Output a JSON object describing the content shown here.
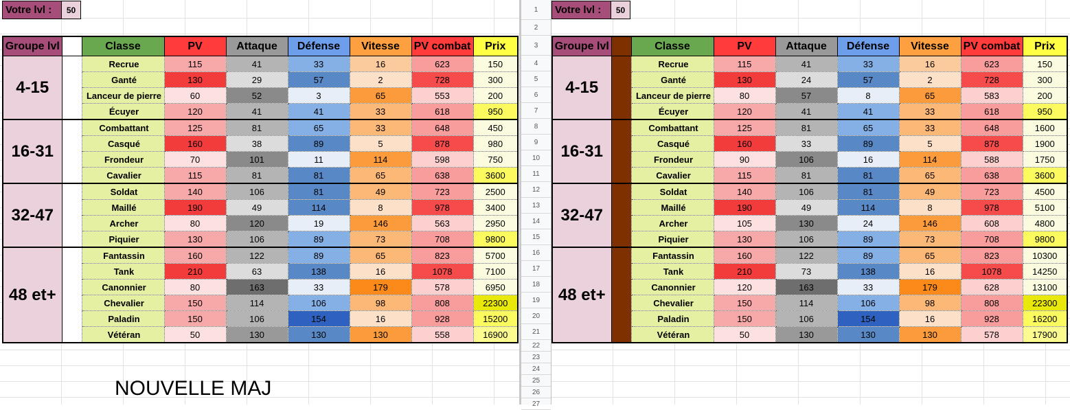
{
  "level": {
    "label": "Votre lvl :",
    "value": "50"
  },
  "note": "NOUVELLE MAJ",
  "row_numbers": [
    "1",
    "2",
    "3",
    "4",
    "5",
    "6",
    "7",
    "8",
    "9",
    "10",
    "11",
    "12",
    "13",
    "14",
    "15",
    "16",
    "17",
    "18",
    "19",
    "20",
    "21",
    "22",
    "23",
    "24",
    "25",
    "26",
    "27"
  ],
  "headers": {
    "group": "Groupe lvl",
    "class": "Classe",
    "pv": "PV",
    "attack": "Attaque",
    "defense": "Défense",
    "speed": "Vitesse",
    "combat": "PV combat",
    "price": "Prix"
  },
  "colors": {
    "header_group": "#a64d79",
    "header_class": "#6aa84f",
    "header_pv": "#ff3b3b",
    "header_attack": "#999999",
    "header_defense": "#6d9eeb",
    "header_speed": "#ffa040",
    "header_combat": "#ff3b3b",
    "header_price": "#ffff44",
    "right_spacer": "#7f3000"
  },
  "left": {
    "groups": [
      {
        "label": "4-15",
        "rows": [
          {
            "name": "Recrue",
            "pv": "115",
            "att": "41",
            "def": "33",
            "spd": "16",
            "comb": "623",
            "price": "150",
            "c": [
              "#f7a8a8",
              "#b4b4b4",
              "#84b0e6",
              "#fbcb9e",
              "#f89c9c",
              "#fbfbe0"
            ]
          },
          {
            "name": "Ganté",
            "pv": "130",
            "att": "29",
            "def": "57",
            "spd": "2",
            "comb": "728",
            "price": "300",
            "c": [
              "#f23b3b",
              "#dcdcdc",
              "#5888c6",
              "#fde0c8",
              "#f54b4b",
              "#fbfbe0"
            ]
          },
          {
            "name": "Lanceur de pierre",
            "pv": "60",
            "att": "52",
            "def": "3",
            "spd": "65",
            "comb": "553",
            "price": "200",
            "c": [
              "#fde0e0",
              "#8a8a8a",
              "#e8eef8",
              "#fb9b3c",
              "#fdd0d0",
              "#fbfbe0"
            ]
          },
          {
            "name": "Écuyer",
            "pv": "120",
            "att": "41",
            "def": "41",
            "spd": "33",
            "comb": "618",
            "price": "950",
            "c": [
              "#f7a8a8",
              "#b4b4b4",
              "#84b0e6",
              "#fbb877",
              "#f89c9c",
              "#fbfb60"
            ]
          }
        ]
      },
      {
        "label": "16-31",
        "rows": [
          {
            "name": "Combattant",
            "pv": "125",
            "att": "81",
            "def": "65",
            "spd": "33",
            "comb": "648",
            "price": "450",
            "c": [
              "#f7a8a8",
              "#b4b4b4",
              "#84b0e6",
              "#fbb877",
              "#f89c9c",
              "#fbfbe0"
            ]
          },
          {
            "name": "Casqué",
            "pv": "160",
            "att": "38",
            "def": "89",
            "spd": "5",
            "comb": "878",
            "price": "980",
            "c": [
              "#f23b3b",
              "#dcdcdc",
              "#5888c6",
              "#fde0c8",
              "#f54b4b",
              "#fbfbe0"
            ]
          },
          {
            "name": "Frondeur",
            "pv": "70",
            "att": "101",
            "def": "11",
            "spd": "114",
            "comb": "598",
            "price": "750",
            "c": [
              "#fde0e0",
              "#8a8a8a",
              "#e8eef8",
              "#fb9b3c",
              "#fdd0d0",
              "#fbfbe0"
            ]
          },
          {
            "name": "Cavalier",
            "pv": "115",
            "att": "81",
            "def": "81",
            "spd": "65",
            "comb": "638",
            "price": "3600",
            "c": [
              "#f7a8a8",
              "#b4b4b4",
              "#5888c6",
              "#fbb877",
              "#f89c9c",
              "#fbfb60"
            ]
          }
        ]
      },
      {
        "label": "32-47",
        "rows": [
          {
            "name": "Soldat",
            "pv": "140",
            "att": "106",
            "def": "81",
            "spd": "49",
            "comb": "723",
            "price": "2500",
            "c": [
              "#f7a8a8",
              "#b4b4b4",
              "#5888c6",
              "#fbb877",
              "#f89c9c",
              "#fbfbe0"
            ]
          },
          {
            "name": "Maillé",
            "pv": "190",
            "att": "49",
            "def": "114",
            "spd": "8",
            "comb": "978",
            "price": "3400",
            "c": [
              "#f23b3b",
              "#dcdcdc",
              "#5888c6",
              "#fde0c8",
              "#f54b4b",
              "#fbfbe0"
            ]
          },
          {
            "name": "Archer",
            "pv": "80",
            "att": "120",
            "def": "19",
            "spd": "146",
            "comb": "563",
            "price": "2950",
            "c": [
              "#fde0e0",
              "#8a8a8a",
              "#e8eef8",
              "#fb9b3c",
              "#fdd0d0",
              "#fbfbe0"
            ]
          },
          {
            "name": "Piquier",
            "pv": "130",
            "att": "106",
            "def": "89",
            "spd": "73",
            "comb": "708",
            "price": "9800",
            "c": [
              "#f7a8a8",
              "#b4b4b4",
              "#84b0e6",
              "#fbb877",
              "#f89c9c",
              "#fbfb60"
            ]
          }
        ]
      },
      {
        "label": "48 et+",
        "rows": [
          {
            "name": "Fantassin",
            "pv": "160",
            "att": "122",
            "def": "89",
            "spd": "65",
            "comb": "823",
            "price": "5700",
            "c": [
              "#f7a8a8",
              "#b4b4b4",
              "#84b0e6",
              "#fbb877",
              "#f89c9c",
              "#fbfbe0"
            ]
          },
          {
            "name": "Tank",
            "pv": "210",
            "att": "63",
            "def": "138",
            "spd": "16",
            "comb": "1078",
            "price": "7100",
            "c": [
              "#f23b3b",
              "#dcdcdc",
              "#5888c6",
              "#fde0c8",
              "#f54b4b",
              "#fbfbe0"
            ]
          },
          {
            "name": "Canonnier",
            "pv": "80",
            "att": "163",
            "def": "33",
            "spd": "179",
            "comb": "578",
            "price": "6950",
            "c": [
              "#fde0e0",
              "#6e6e6e",
              "#e8eef8",
              "#fb8a1a",
              "#fdd0d0",
              "#fbfbe0"
            ]
          },
          {
            "name": "Chevalier",
            "pv": "150",
            "att": "114",
            "def": "106",
            "spd": "98",
            "comb": "808",
            "price": "22300",
            "c": [
              "#f7a8a8",
              "#b4b4b4",
              "#84b0e6",
              "#fbb877",
              "#f89c9c",
              "#e8e80a"
            ]
          },
          {
            "name": "Paladin",
            "pv": "150",
            "att": "106",
            "def": "154",
            "spd": "16",
            "comb": "928",
            "price": "15200",
            "c": [
              "#f7a8a8",
              "#b4b4b4",
              "#2f62c0",
              "#fde0c8",
              "#f89c9c",
              "#fbfb60"
            ]
          },
          {
            "name": "Vétéran",
            "pv": "50",
            "att": "130",
            "def": "130",
            "spd": "130",
            "comb": "558",
            "price": "16900",
            "c": [
              "#fde0e0",
              "#999999",
              "#5888c6",
              "#fb9b3c",
              "#fdd0d0",
              "#fbfb90"
            ]
          }
        ]
      }
    ]
  },
  "right": {
    "groups": [
      {
        "label": "4-15",
        "rows": [
          {
            "name": "Recrue",
            "pv": "115",
            "att": "41",
            "def": "33",
            "spd": "16",
            "comb": "623",
            "price": "150",
            "c": [
              "#f7a8a8",
              "#b4b4b4",
              "#84b0e6",
              "#fbcb9e",
              "#f89c9c",
              "#fbfbe0"
            ]
          },
          {
            "name": "Ganté",
            "pv": "130",
            "att": "24",
            "def": "57",
            "spd": "2",
            "comb": "728",
            "price": "300",
            "c": [
              "#f23b3b",
              "#dcdcdc",
              "#5888c6",
              "#fde0c8",
              "#f54b4b",
              "#fbfbe0"
            ]
          },
          {
            "name": "Lanceur de pierre",
            "pv": "80",
            "att": "57",
            "def": "8",
            "spd": "65",
            "comb": "583",
            "price": "200",
            "c": [
              "#fde0e0",
              "#8a8a8a",
              "#e8eef8",
              "#fb9b3c",
              "#fdd0d0",
              "#fbfbe0"
            ]
          },
          {
            "name": "Écuyer",
            "pv": "120",
            "att": "41",
            "def": "41",
            "spd": "33",
            "comb": "618",
            "price": "950",
            "c": [
              "#f7a8a8",
              "#b4b4b4",
              "#84b0e6",
              "#fbb877",
              "#f89c9c",
              "#fbfb60"
            ]
          }
        ]
      },
      {
        "label": "16-31",
        "rows": [
          {
            "name": "Combattant",
            "pv": "125",
            "att": "81",
            "def": "65",
            "spd": "33",
            "comb": "648",
            "price": "1600",
            "c": [
              "#f7a8a8",
              "#b4b4b4",
              "#84b0e6",
              "#fbb877",
              "#f89c9c",
              "#fbfbe0"
            ]
          },
          {
            "name": "Casqué",
            "pv": "160",
            "att": "33",
            "def": "89",
            "spd": "5",
            "comb": "878",
            "price": "1900",
            "c": [
              "#f23b3b",
              "#dcdcdc",
              "#5888c6",
              "#fde0c8",
              "#f54b4b",
              "#fbfbe0"
            ]
          },
          {
            "name": "Frondeur",
            "pv": "90",
            "att": "106",
            "def": "16",
            "spd": "114",
            "comb": "588",
            "price": "1750",
            "c": [
              "#fde0e0",
              "#8a8a8a",
              "#e8eef8",
              "#fb9b3c",
              "#fdd0d0",
              "#fbfbe0"
            ]
          },
          {
            "name": "Cavalier",
            "pv": "115",
            "att": "81",
            "def": "81",
            "spd": "65",
            "comb": "638",
            "price": "3600",
            "c": [
              "#f7a8a8",
              "#b4b4b4",
              "#5888c6",
              "#fbb877",
              "#f89c9c",
              "#fbfb60"
            ]
          }
        ]
      },
      {
        "label": "32-47",
        "rows": [
          {
            "name": "Soldat",
            "pv": "140",
            "att": "106",
            "def": "81",
            "spd": "49",
            "comb": "723",
            "price": "4500",
            "c": [
              "#f7a8a8",
              "#b4b4b4",
              "#5888c6",
              "#fbb877",
              "#f89c9c",
              "#fbfbe0"
            ]
          },
          {
            "name": "Maillé",
            "pv": "190",
            "att": "49",
            "def": "114",
            "spd": "8",
            "comb": "978",
            "price": "5100",
            "c": [
              "#f23b3b",
              "#dcdcdc",
              "#5888c6",
              "#fde0c8",
              "#f54b4b",
              "#fbfbe0"
            ]
          },
          {
            "name": "Archer",
            "pv": "105",
            "att": "130",
            "def": "24",
            "spd": "146",
            "comb": "608",
            "price": "4800",
            "c": [
              "#fde0e0",
              "#8a8a8a",
              "#e8eef8",
              "#fb9b3c",
              "#fdd0d0",
              "#fbfbe0"
            ]
          },
          {
            "name": "Piquier",
            "pv": "130",
            "att": "106",
            "def": "89",
            "spd": "73",
            "comb": "708",
            "price": "9800",
            "c": [
              "#f7a8a8",
              "#b4b4b4",
              "#84b0e6",
              "#fbb877",
              "#f89c9c",
              "#fbfb60"
            ]
          }
        ]
      },
      {
        "label": "48 et+",
        "rows": [
          {
            "name": "Fantassin",
            "pv": "160",
            "att": "122",
            "def": "89",
            "spd": "65",
            "comb": "823",
            "price": "10300",
            "c": [
              "#f7a8a8",
              "#b4b4b4",
              "#84b0e6",
              "#fbb877",
              "#f89c9c",
              "#fbfbe0"
            ]
          },
          {
            "name": "Tank",
            "pv": "210",
            "att": "73",
            "def": "138",
            "spd": "16",
            "comb": "1078",
            "price": "14250",
            "c": [
              "#f23b3b",
              "#dcdcdc",
              "#5888c6",
              "#fde0c8",
              "#f54b4b",
              "#fbfbe0"
            ]
          },
          {
            "name": "Canonnier",
            "pv": "120",
            "att": "163",
            "def": "33",
            "spd": "179",
            "comb": "628",
            "price": "13100",
            "c": [
              "#fde0e0",
              "#6e6e6e",
              "#e8eef8",
              "#fb8a1a",
              "#fdd0d0",
              "#fbfbe0"
            ]
          },
          {
            "name": "Chevalier",
            "pv": "150",
            "att": "114",
            "def": "106",
            "spd": "98",
            "comb": "808",
            "price": "22300",
            "c": [
              "#f7a8a8",
              "#b4b4b4",
              "#84b0e6",
              "#fbb877",
              "#f89c9c",
              "#e8e80a"
            ]
          },
          {
            "name": "Paladin",
            "pv": "150",
            "att": "106",
            "def": "154",
            "spd": "16",
            "comb": "928",
            "price": "16200",
            "c": [
              "#f7a8a8",
              "#b4b4b4",
              "#2f62c0",
              "#fde0c8",
              "#f89c9c",
              "#fbfb60"
            ]
          },
          {
            "name": "Vétéran",
            "pv": "50",
            "att": "130",
            "def": "130",
            "spd": "130",
            "comb": "578",
            "price": "17900",
            "c": [
              "#fde0e0",
              "#999999",
              "#5888c6",
              "#fb9b3c",
              "#fdd0d0",
              "#fbfb90"
            ]
          }
        ]
      }
    ]
  }
}
